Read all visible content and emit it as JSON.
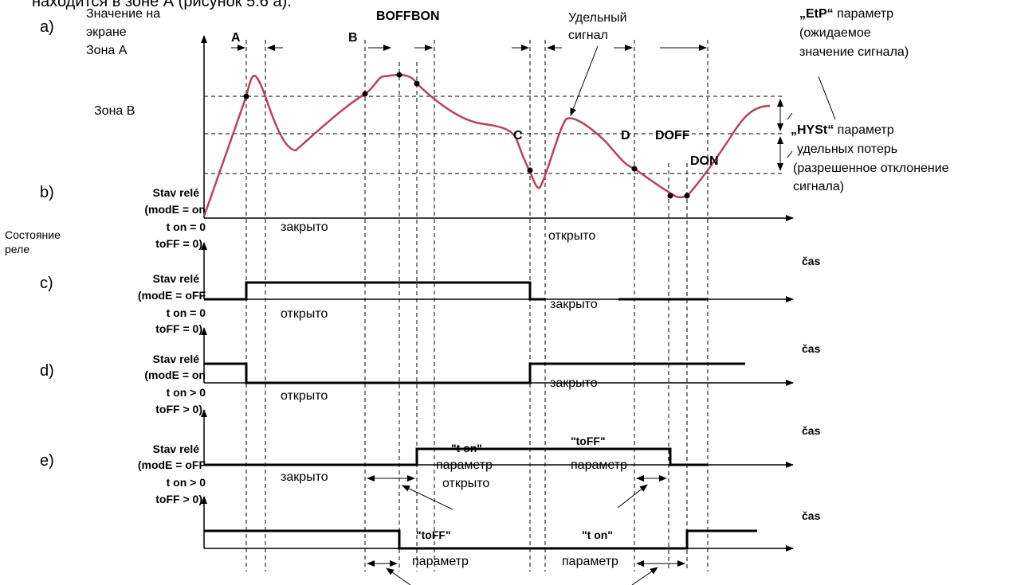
{
  "top_cut_text": "находится в зоне А (рисунок 5.6 а).",
  "panels": {
    "a": "a)",
    "b": "b)",
    "c": "c)",
    "d": "d)",
    "e": "e)"
  },
  "display_value": {
    "line1": "Значение на",
    "line2": "экране"
  },
  "zone_a": "Зона A",
  "zone_b": "Зона B",
  "points": {
    "A": "A",
    "B": "B",
    "B_off": "BOFF",
    "B_on": "BON",
    "C": "C",
    "D": "D",
    "D_off": "DOFF",
    "D_on": "DON"
  },
  "specific_signal": {
    "line1": "Удельный",
    "line2": "сигнал"
  },
  "etp": {
    "name": "„EtP“",
    "rest": " параметр",
    "line2": "(ожидаемое",
    "line3": "значение сигнала)"
  },
  "hyst": {
    "name": "„HYSt“",
    "rest": " параметр",
    "line2": "удельных потерь",
    "line3": "(разрешенное отклонение",
    "line4": "сигнала)"
  },
  "relay_state": {
    "line1": "Состояние",
    "line2": "реле"
  },
  "relay_labels": {
    "b": [
      "Stav relé",
      "(modE = on",
      "t on  =  0",
      "toFF = 0)"
    ],
    "c": [
      "Stav relé",
      "(modE = oFF",
      "t on  =  0",
      "toFF = 0)"
    ],
    "d": [
      "Stav relé",
      "(modE = on",
      "t on  >  0",
      "toFF > 0)"
    ],
    "e": [
      "Stav relé",
      "(modE = oFF",
      "t on  >  0",
      "toFF > 0)"
    ]
  },
  "time_label": "čas",
  "state_words": {
    "closed": "закрыто",
    "open": "открыто",
    "param": "параметр",
    "t_on": "\"t on\"",
    "t_off": "\"toFF\""
  },
  "colors": {
    "signal": "#b8425a",
    "ink": "#000000"
  }
}
